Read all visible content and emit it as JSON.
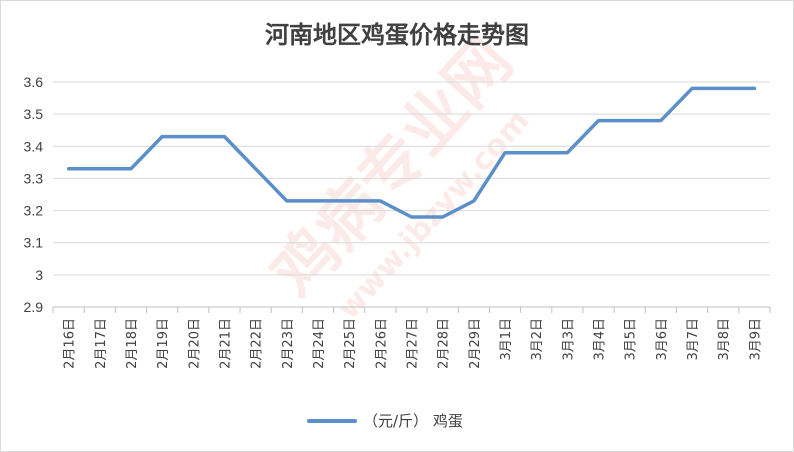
{
  "chart_data": {
    "type": "line",
    "title": "河南地区鸡蛋价格走势图",
    "categories": [
      "2月16日",
      "2月17日",
      "2月18日",
      "2月19日",
      "2月20日",
      "2月21日",
      "2月22日",
      "2月23日",
      "2月24日",
      "2月25日",
      "2月26日",
      "2月27日",
      "2月28日",
      "2月29日",
      "3月1日",
      "3月2日",
      "3月3日",
      "3月4日",
      "3月5日",
      "3月6日",
      "3月7日",
      "3月8日",
      "3月9日"
    ],
    "series": [
      {
        "name": "（元/斤） 鸡蛋",
        "color": "#5b8fc9",
        "values": [
          3.33,
          3.33,
          3.33,
          3.43,
          3.43,
          3.43,
          3.33,
          3.23,
          3.23,
          3.23,
          3.23,
          3.18,
          3.18,
          3.23,
          3.38,
          3.38,
          3.38,
          3.48,
          3.48,
          3.48,
          3.58,
          3.58,
          3.58
        ]
      }
    ],
    "yticks": [
      "2.9",
      "3",
      "3.1",
      "3.2",
      "3.3",
      "3.4",
      "3.5",
      "3.6"
    ],
    "ylim": [
      2.9,
      3.6
    ],
    "grid": true,
    "legend_position": "bottom"
  },
  "watermark": {
    "main": "鸡病专业网",
    "url": "www.jbzyw.com",
    "color": "#e8402a"
  }
}
